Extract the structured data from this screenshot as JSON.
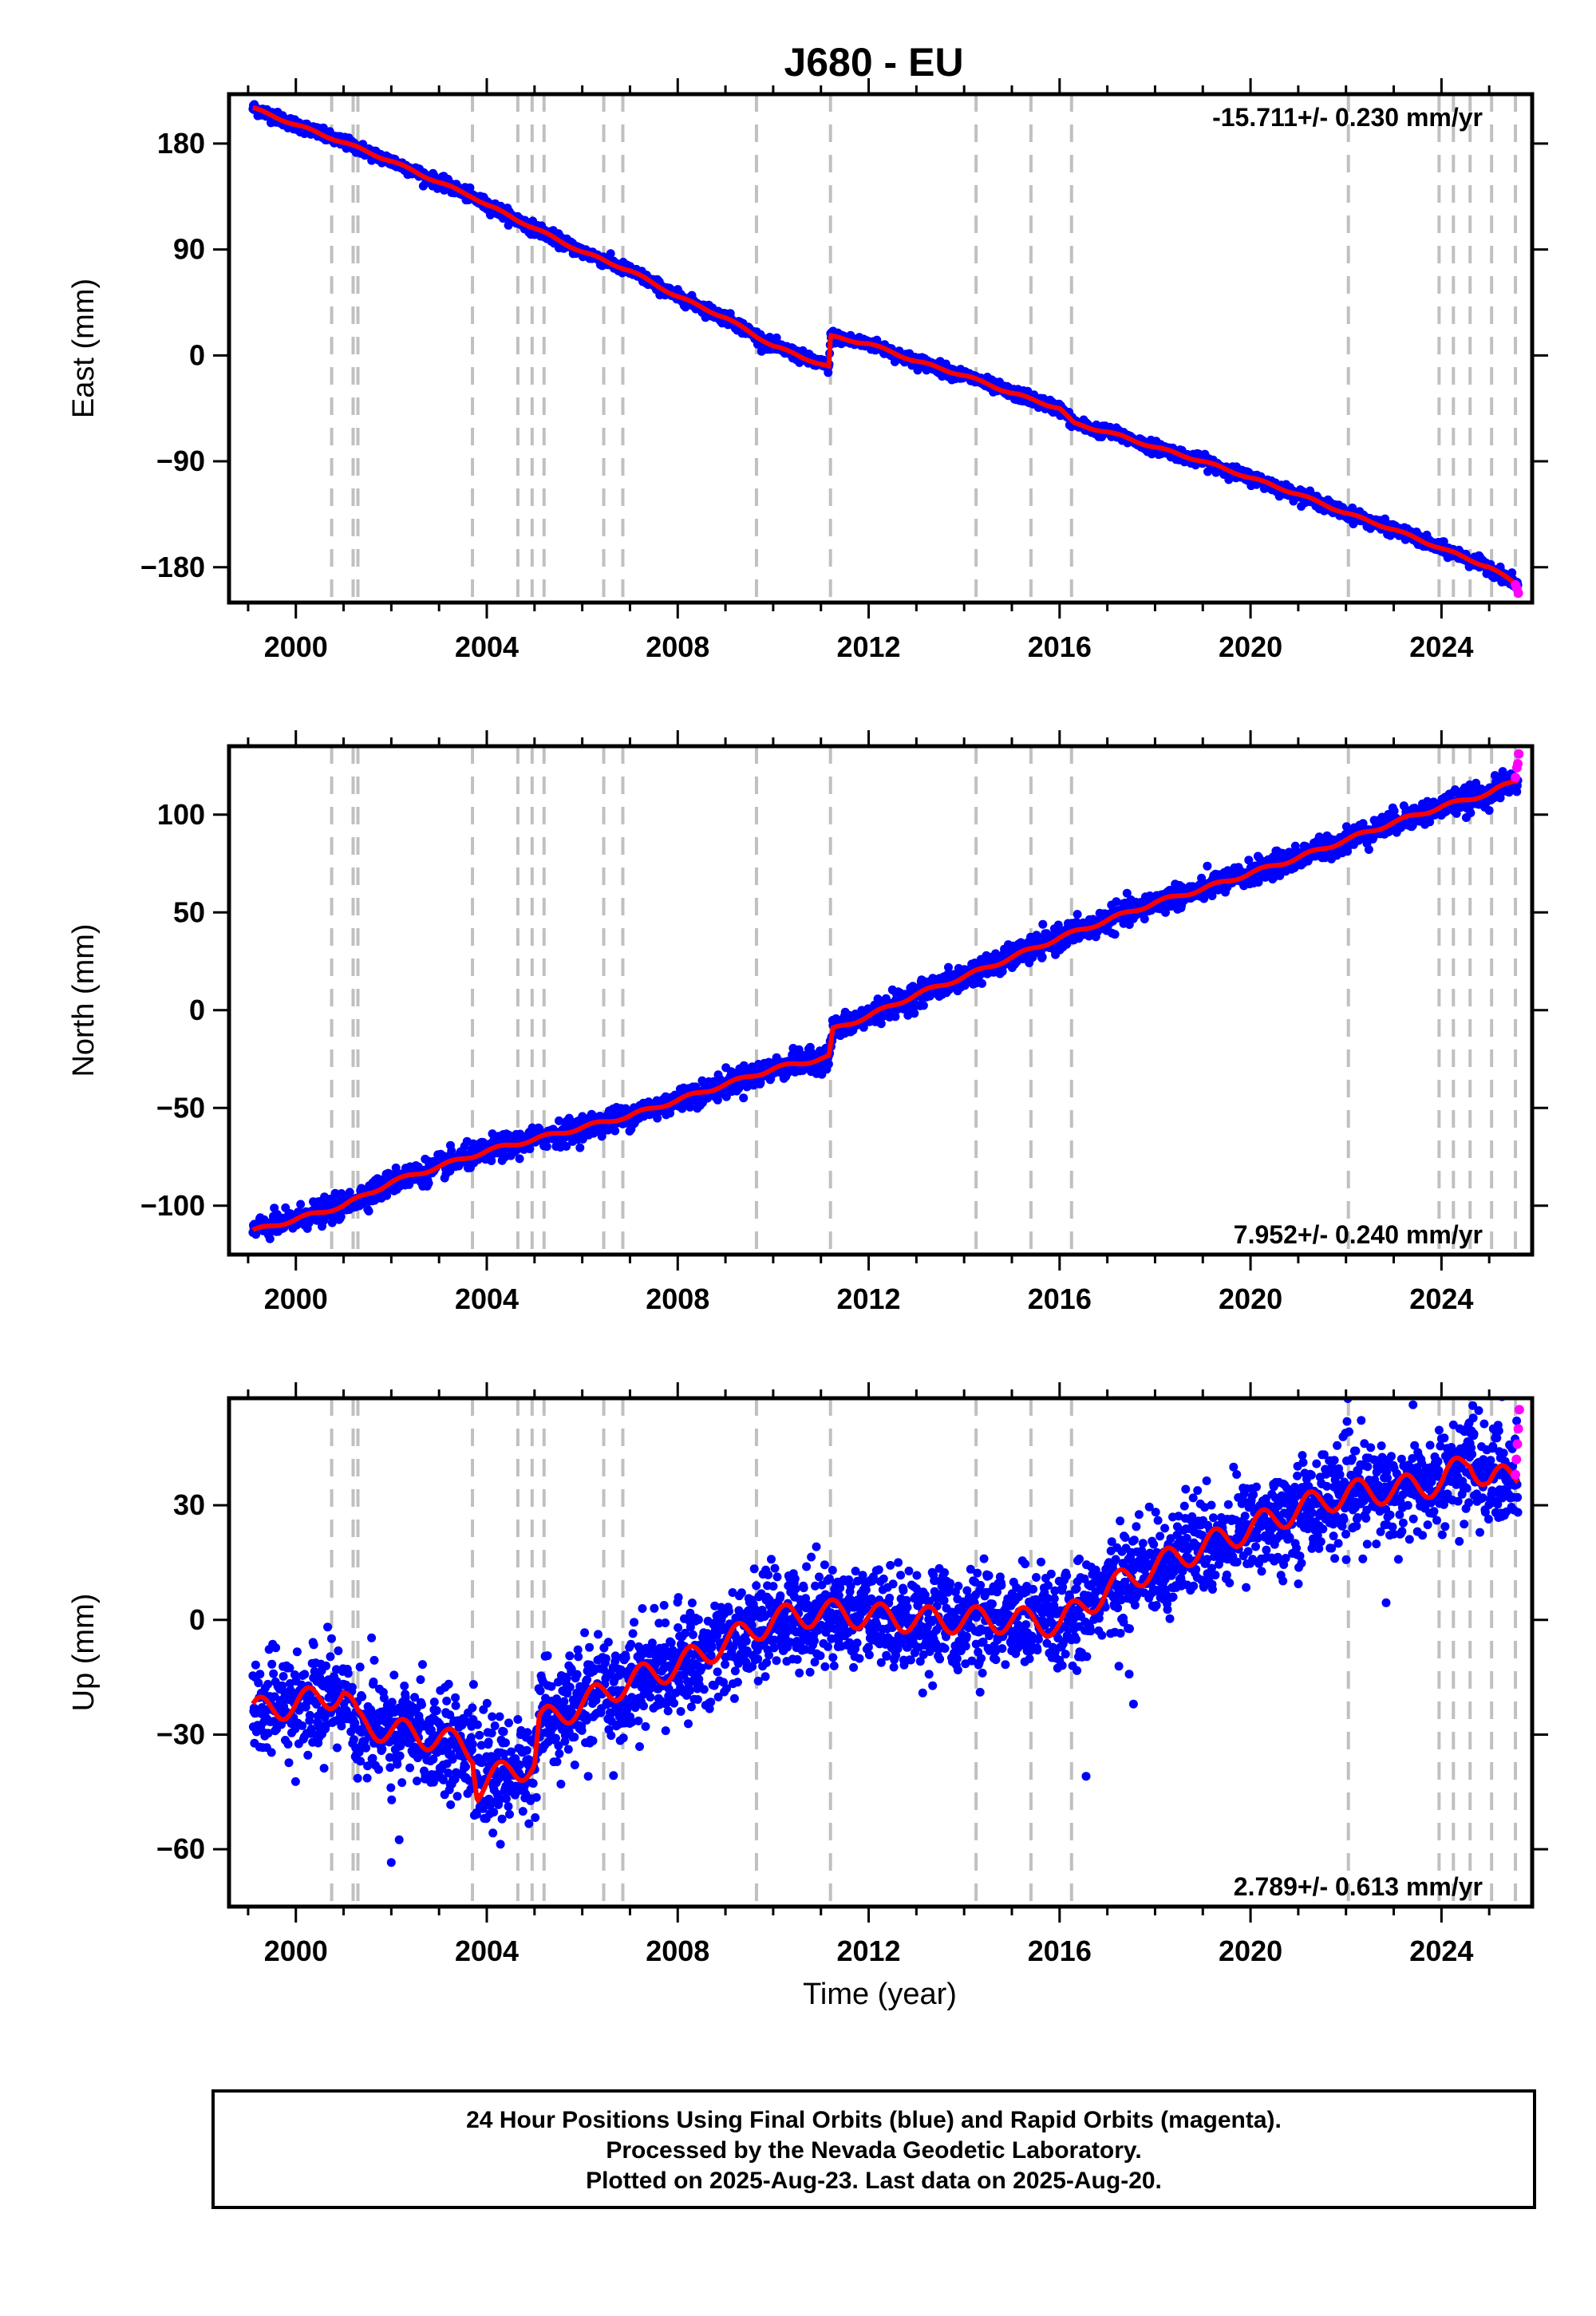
{
  "title": "J680 - EU",
  "colors": {
    "final_orbits": "#0000ff",
    "rapid_orbits": "#ff00ff",
    "model": "#ff0000",
    "event_lines": "#c0c0c0",
    "frame": "#000000"
  },
  "chart_data": [
    {
      "type": "scatter",
      "ylabel": "East (mm)",
      "rate_label": "-15.711+/- 0.230 mm/yr",
      "rate_position": "top-right",
      "xlim": [
        1998.6,
        2025.9
      ],
      "ylim": [
        -210,
        222
      ],
      "x_ticks": [
        2000,
        2004,
        2008,
        2012,
        2016,
        2020,
        2024
      ],
      "y_ticks": [
        180,
        90,
        0,
        -90,
        -180
      ],
      "y_tick_labels": [
        "180",
        "90",
        "0",
        "−90",
        "−180"
      ],
      "series": [
        {
          "role": "model",
          "x": [
            1999.1,
            2000.0,
            2001.0,
            2002.0,
            2003.0,
            2003.7,
            2004.0,
            2005.0,
            2006.0,
            2007.0,
            2008.0,
            2009.0,
            2010.0,
            2011.17,
            2011.2,
            2012.0,
            2013.0,
            2014.0,
            2015.0,
            2016.0,
            2016.3,
            2017.0,
            2018.0,
            2019.0,
            2020.0,
            2021.0,
            2022.0,
            2023.0,
            2024.0,
            2025.0,
            2025.6
          ],
          "y": [
            210,
            196,
            181,
            165,
            147,
            135,
            128,
            108,
            88,
            72,
            50,
            32,
            8,
            -10,
            16,
            10,
            -5,
            -17,
            -32,
            -45,
            -58,
            -65,
            -78,
            -90,
            -104,
            -118,
            -134,
            -148,
            -164,
            -180,
            -195
          ]
        },
        {
          "role": "rapid",
          "x": [
            2025.55,
            2025.58,
            2025.61
          ],
          "y": [
            -195,
            -198,
            -202
          ]
        }
      ],
      "noise": 2.5,
      "n_points": 2600
    },
    {
      "type": "scatter",
      "ylabel": "North (mm)",
      "rate_label": "7.952+/- 0.240 mm/yr",
      "rate_position": "bottom-right",
      "xlim": [
        1998.6,
        2025.9
      ],
      "ylim": [
        -125,
        135
      ],
      "x_ticks": [
        2000,
        2004,
        2008,
        2012,
        2016,
        2020,
        2024
      ],
      "y_ticks": [
        100,
        50,
        0,
        -50,
        -100
      ],
      "y_tick_labels": [
        "100",
        "50",
        "0",
        "−50",
        "−100"
      ],
      "series": [
        {
          "role": "model",
          "x": [
            1999.1,
            2000.0,
            2001.0,
            2002.0,
            2003.0,
            2004.0,
            2005.0,
            2006.0,
            2007.0,
            2008.0,
            2009.0,
            2010.0,
            2011.17,
            2011.25,
            2012.0,
            2013.0,
            2014.0,
            2015.0,
            2016.0,
            2017.0,
            2018.0,
            2019.0,
            2020.0,
            2021.0,
            2022.0,
            2023.0,
            2024.0,
            2025.0,
            2025.6
          ],
          "y": [
            -113,
            -107,
            -100,
            -88,
            -80,
            -72,
            -66,
            -60,
            -54,
            -46,
            -38,
            -30,
            -24,
            -10,
            -3,
            8,
            17,
            27,
            37,
            46,
            55,
            62,
            70,
            78,
            87,
            96,
            104,
            111,
            118
          ]
        },
        {
          "role": "rapid",
          "x": [
            2025.55,
            2025.58,
            2025.6,
            2025.62
          ],
          "y": [
            119,
            124,
            126,
            131
          ]
        }
      ],
      "noise": 3.0,
      "n_points": 2600
    },
    {
      "type": "scatter",
      "ylabel": "Up (mm)",
      "xlabel": "Time (year)",
      "rate_label": "2.789+/- 0.613 mm/yr",
      "rate_position": "bottom-right",
      "xlim": [
        1998.6,
        2025.9
      ],
      "ylim": [
        -75,
        58
      ],
      "x_ticks": [
        2000,
        2004,
        2008,
        2012,
        2016,
        2020,
        2024
      ],
      "y_ticks": [
        30,
        0,
        -30,
        -60
      ],
      "y_tick_labels": [
        "30",
        "0",
        "−30",
        "−60"
      ],
      "series": [
        {
          "role": "model",
          "x": [
            1999.1,
            2000.0,
            2001.0,
            2001.3,
            2002.0,
            2003.0,
            2003.7,
            2003.8,
            2004.5,
            2005.0,
            2005.1,
            2006.0,
            2007.0,
            2008.0,
            2009.0,
            2010.0,
            2011.0,
            2012.0,
            2013.0,
            2014.0,
            2015.0,
            2016.0,
            2017.0,
            2018.0,
            2019.0,
            2020.0,
            2021.0,
            2022.0,
            2023.0,
            2024.0,
            2024.6,
            2025.0,
            2025.6
          ],
          "y": [
            -24,
            -22,
            -19,
            -27,
            -29,
            -31,
            -34,
            -44,
            -39,
            -38,
            -27,
            -22,
            -16,
            -12,
            -6,
            0,
            2,
            1,
            0,
            0,
            0,
            -1,
            8,
            14,
            19,
            24,
            29,
            33,
            34,
            36,
            42,
            36,
            38
          ]
        },
        {
          "role": "rapid",
          "x": [
            2025.55,
            2025.57,
            2025.59,
            2025.61,
            2025.63
          ],
          "y": [
            38,
            42,
            46,
            50,
            55
          ]
        }
      ],
      "noise": 6.5,
      "n_points": 3200
    }
  ],
  "event_lines": [
    2000.75,
    2001.2,
    2001.3,
    2003.7,
    2004.65,
    2004.95,
    2005.2,
    2006.45,
    2006.85,
    2009.65,
    2011.2,
    2014.25,
    2015.4,
    2016.25,
    2022.05,
    2023.95,
    2024.25,
    2024.6,
    2025.05,
    2025.55
  ],
  "footer": {
    "line1": "24 Hour Positions Using Final Orbits (blue) and Rapid Orbits (magenta).",
    "line2": "Processed by the Nevada Geodetic Laboratory.",
    "line3": "Plotted on 2025-Aug-23. Last data on 2025-Aug-20."
  }
}
